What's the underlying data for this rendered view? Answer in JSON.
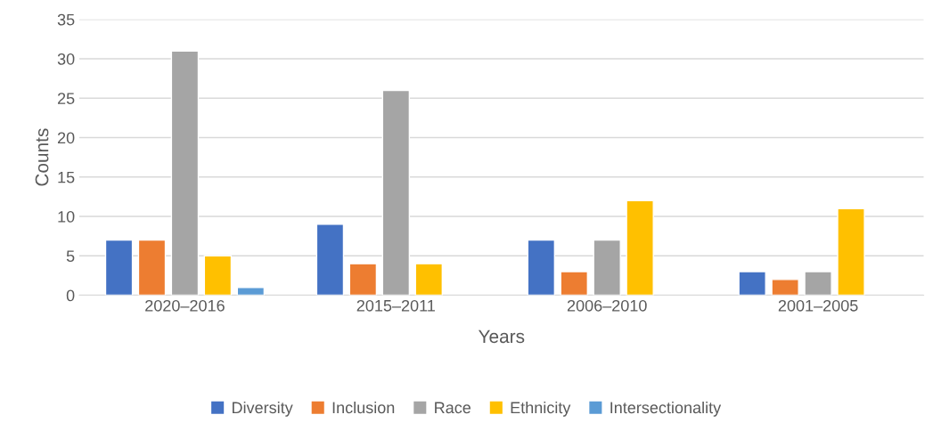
{
  "chart_data": {
    "type": "bar",
    "xlabel": "Years",
    "ylabel": "Counts",
    "categories": [
      "2020–2016",
      "2015–2011",
      "2006–2010",
      "2001–2005"
    ],
    "series": [
      {
        "name": "Diversity",
        "color": "#4472c4",
        "values": [
          7,
          9,
          7,
          3
        ]
      },
      {
        "name": "Inclusion",
        "color": "#ed7d31",
        "values": [
          7,
          4,
          3,
          2
        ]
      },
      {
        "name": "Race",
        "color": "#a5a5a5",
        "values": [
          31,
          26,
          7,
          3
        ]
      },
      {
        "name": "Ethnicity",
        "color": "#ffc000",
        "values": [
          5,
          4,
          12,
          11
        ]
      },
      {
        "name": "Intersectionality",
        "color": "#5b9bd5",
        "values": [
          1,
          null,
          null,
          null
        ]
      }
    ],
    "ylim": [
      0,
      35
    ],
    "yticks": [
      0,
      5,
      10,
      15,
      20,
      25,
      30,
      35
    ],
    "grid": "y",
    "legend": "bottom"
  }
}
